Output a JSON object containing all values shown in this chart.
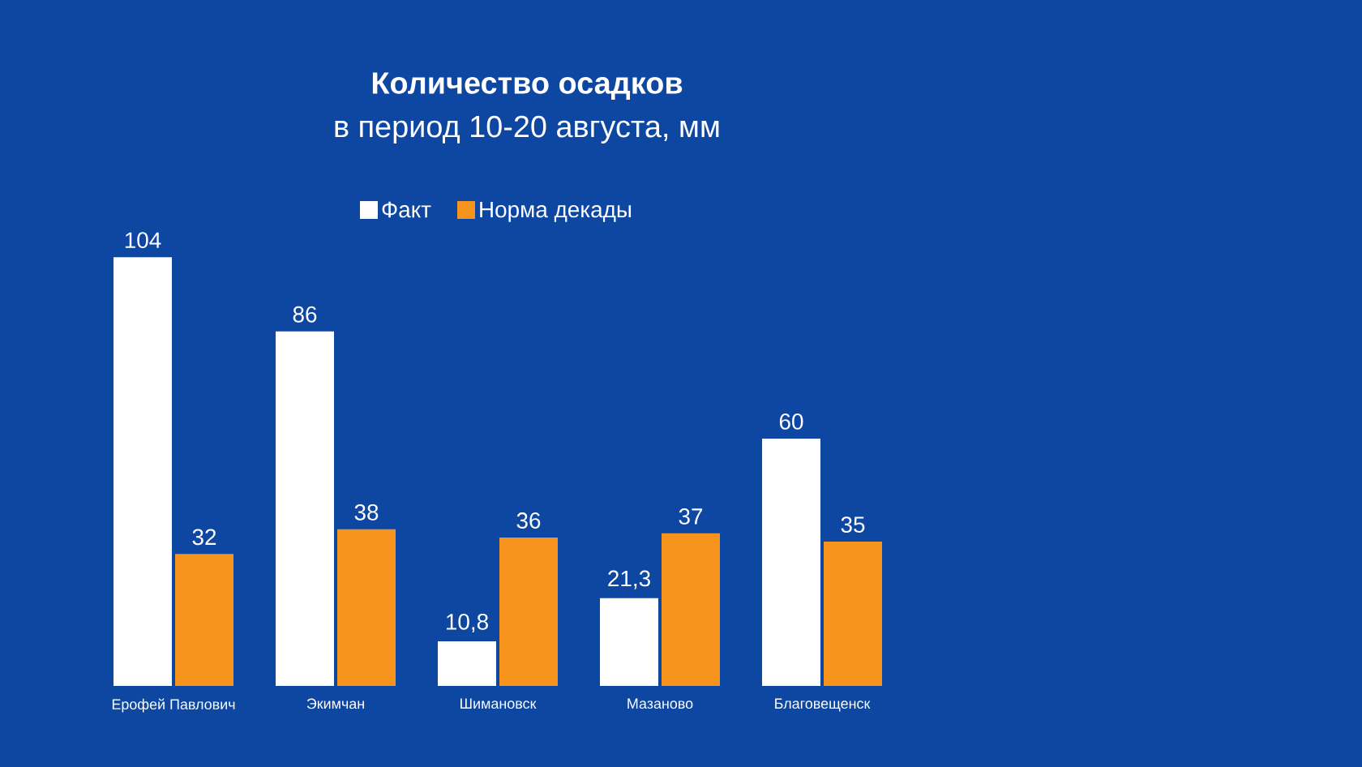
{
  "chart_data": {
    "type": "bar",
    "title": "Количество осадков",
    "subtitle": "в период 10-20 августа, мм",
    "categories": [
      "Ерофей Павлович",
      "Экимчан",
      "Шимановск",
      "Мазаново",
      "Благовещенск"
    ],
    "series": [
      {
        "name": "Факт",
        "color": "#ffffff",
        "values": [
          104,
          86,
          10.8,
          21.3,
          60
        ],
        "value_labels": [
          "104",
          "86",
          "10,8",
          "21,3",
          "60"
        ]
      },
      {
        "name": "Норма декады",
        "color": "#f7941d",
        "values": [
          32,
          38,
          36,
          37,
          35
        ],
        "value_labels": [
          "32",
          "38",
          "36",
          "37",
          "35"
        ]
      }
    ],
    "legend": "top"
  }
}
